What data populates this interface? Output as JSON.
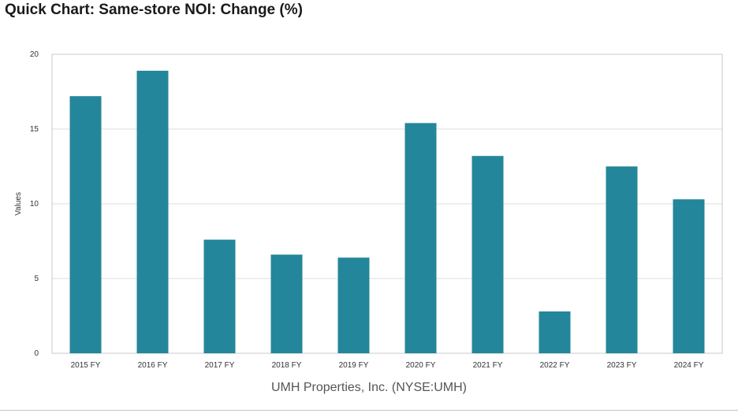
{
  "page": {
    "title": "Quick Chart: Same-store NOI: Change (%)",
    "caption": "UMH Properties, Inc. (NYSE:UMH)"
  },
  "colors": {
    "bar": "#24869a",
    "grid": "#dcdcdc",
    "frame": "#c8c8c8"
  },
  "chart_data": {
    "type": "bar",
    "title": "Quick Chart: Same-store NOI: Change (%)",
    "xlabel": "UMH Properties, Inc. (NYSE:UMH)",
    "ylabel": "Values",
    "categories": [
      "2015 FY",
      "2016 FY",
      "2017 FY",
      "2018 FY",
      "2019 FY",
      "2020 FY",
      "2021 FY",
      "2022 FY",
      "2023 FY",
      "2024 FY"
    ],
    "values": [
      17.2,
      18.9,
      7.6,
      6.6,
      6.4,
      15.4,
      13.2,
      2.8,
      12.5,
      10.3
    ],
    "ylim": [
      0,
      20
    ],
    "yticks": [
      "0",
      "5",
      "10",
      "15",
      "20"
    ],
    "grid": true,
    "legend": "none"
  }
}
